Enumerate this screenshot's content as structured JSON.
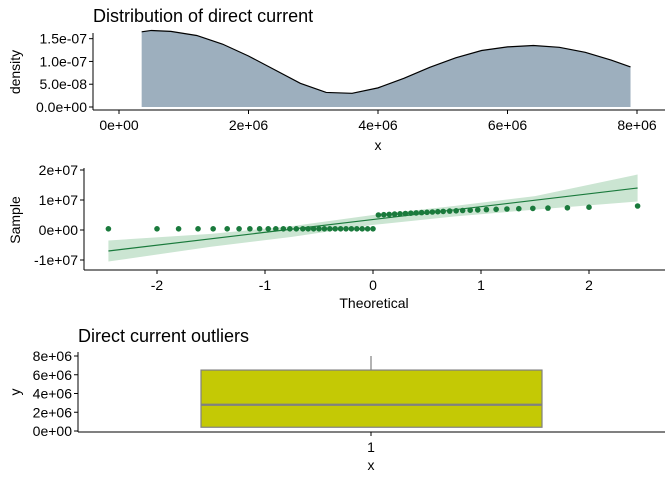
{
  "chart_data": [
    {
      "type": "area",
      "title": "Distribution of direct current",
      "xlabel": "x",
      "ylabel": "density",
      "xlim": [
        0,
        8000000
      ],
      "ylim": [
        0,
        1.8e-07
      ],
      "x_ticks": [
        0,
        2000000,
        4000000,
        6000000,
        8000000
      ],
      "x_tick_labels": [
        "0e+00",
        "2e+06",
        "4e+06",
        "6e+06",
        "8e+06"
      ],
      "y_ticks": [
        0,
        5e-08,
        1e-07,
        1.5e-07
      ],
      "y_tick_labels": [
        "0.0e+00",
        "5.0e-08",
        "1.0e-07",
        "1.5e-07"
      ],
      "colors": {
        "fill": "#9DAFBE",
        "line": "#000000"
      },
      "series": [
        {
          "x": [
            350000,
            500000,
            800000,
            1200000,
            1600000,
            2000000,
            2400000,
            2800000,
            3200000,
            3600000,
            4000000,
            4400000,
            4800000,
            5200000,
            5600000,
            6000000,
            6400000,
            6800000,
            7200000,
            7600000,
            7900000
          ],
          "y": [
            1.65e-07,
            1.68e-07,
            1.66e-07,
            1.57e-07,
            1.38e-07,
            1.12e-07,
            8.2e-08,
            5.2e-08,
            3.2e-08,
            3e-08,
            4.2e-08,
            6.3e-08,
            8.7e-08,
            1.08e-07,
            1.24e-07,
            1.32e-07,
            1.35e-07,
            1.31e-07,
            1.2e-07,
            1.03e-07,
            8.8e-08
          ]
        }
      ]
    },
    {
      "type": "scatter",
      "title": "",
      "xlabel": "Theoretical",
      "ylabel": "Sample",
      "xlim": [
        -2.65,
        2.65
      ],
      "ylim": [
        -13000000,
        20000000
      ],
      "x_ticks": [
        -2,
        -1,
        0,
        1,
        2
      ],
      "x_tick_labels": [
        "-2",
        "-1",
        "0",
        "1",
        "2"
      ],
      "y_ticks": [
        -10000000,
        0,
        10000000,
        20000000
      ],
      "y_tick_labels": [
        "-1e+07",
        "0e+00",
        "1e+07",
        "2e+07"
      ],
      "colors": {
        "points": "#1A7A3C",
        "line": "#1A7A3C",
        "band": "#CBE5D2"
      },
      "reference_line": {
        "x": [
          -2.45,
          2.45
        ],
        "y": [
          -7000000,
          14000000
        ]
      },
      "confidence_band": {
        "x": [
          -2.45,
          -1.5,
          -0.75,
          0,
          0.75,
          1.5,
          2.45
        ],
        "lower": [
          -10500000,
          -5600000,
          -2300000,
          1700000,
          4500000,
          6800000,
          9500000
        ],
        "upper": [
          -3500000,
          -1300000,
          1300000,
          5000000,
          8000000,
          11300000,
          18500000
        ]
      },
      "points": {
        "x": [
          -2.45,
          -2.0,
          -1.8,
          -1.62,
          -1.48,
          -1.35,
          -1.24,
          -1.14,
          -1.05,
          -0.97,
          -0.9,
          -0.83,
          -0.77,
          -0.71,
          -0.65,
          -0.6,
          -0.55,
          -0.5,
          -0.45,
          -0.4,
          -0.35,
          -0.3,
          -0.25,
          -0.2,
          -0.15,
          -0.1,
          -0.05,
          0.0,
          0.05,
          0.1,
          0.15,
          0.2,
          0.25,
          0.3,
          0.35,
          0.4,
          0.45,
          0.5,
          0.55,
          0.6,
          0.65,
          0.71,
          0.77,
          0.83,
          0.9,
          0.97,
          1.05,
          1.14,
          1.24,
          1.35,
          1.48,
          1.62,
          1.8,
          2.0,
          2.45
        ],
        "y": [
          400000,
          400000,
          400000,
          400000,
          400000,
          400000,
          400000,
          400000,
          400000,
          400000,
          400000,
          400000,
          400000,
          400000,
          400000,
          400000,
          400000,
          400000,
          400000,
          400000,
          400000,
          400000,
          400000,
          400000,
          400000,
          400000,
          400000,
          400000,
          5000000,
          5100000,
          5200000,
          5300000,
          5400000,
          5500000,
          5600000,
          5700000,
          5800000,
          5900000,
          6000000,
          6100000,
          6200000,
          6300000,
          6400000,
          6500000,
          6600000,
          6700000,
          6800000,
          6900000,
          7000000,
          7100000,
          7200000,
          7300000,
          7400000,
          7600000,
          8000000
        ]
      }
    },
    {
      "type": "box",
      "title": "Direct current outliers",
      "xlabel": "x",
      "ylabel": "y",
      "categories": [
        "1"
      ],
      "ylim": [
        0,
        8000000
      ],
      "y_ticks": [
        0,
        2000000,
        4000000,
        6000000,
        8000000
      ],
      "y_tick_labels": [
        "0e+00",
        "2e+06",
        "4e+06",
        "6e+06",
        "8e+06"
      ],
      "colors": {
        "fill": "#C4C905",
        "line": "#808080"
      },
      "box": {
        "min": 400000,
        "q1": 400000,
        "median": 2800000,
        "q3": 6500000,
        "max": 8000000
      }
    }
  ]
}
